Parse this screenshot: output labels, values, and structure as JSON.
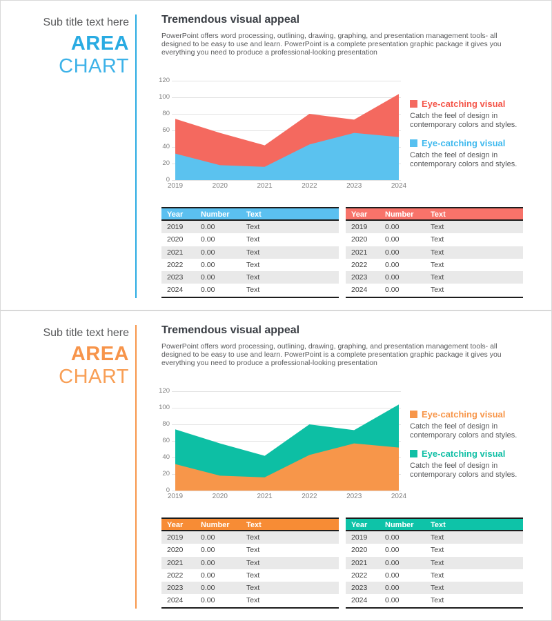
{
  "slides": [
    {
      "sidebar": {
        "subtitle": "Sub title text here",
        "word1": "AREA",
        "word2": "CHART"
      },
      "accent": {
        "word1": "#29ABE2",
        "word2": "#3DB2E8",
        "divider": "#29ABE2"
      },
      "header": {
        "title": "Tremendous visual appeal",
        "body": "PowerPoint offers word processing, outlining, drawing, graphing, and presentation management tools- all designed to be easy to use and learn. PowerPoint is a complete presentation graphic package it gives you everything you need to produce a professional-looking presentation"
      },
      "legends": [
        {
          "title": "Eye-catching visual",
          "title_color": "#F4564A",
          "swatch": "#F4695F",
          "desc": "Catch the feel of design in contemporary colors and styles."
        },
        {
          "title": "Eye-catching visual",
          "title_color": "#3FB9EE",
          "swatch": "#56C0F0",
          "desc": "Catch the feel of design in contemporary colors and styles."
        }
      ],
      "tables": [
        {
          "header_bg": "#5BC0F0",
          "columns": [
            "Year",
            "Number",
            "Text"
          ],
          "rows": [
            [
              "2019",
              "0.00",
              "Text"
            ],
            [
              "2020",
              "0.00",
              "Text"
            ],
            [
              "2021",
              "0.00",
              "Text"
            ],
            [
              "2022",
              "0.00",
              "Text"
            ],
            [
              "2023",
              "0.00",
              "Text"
            ],
            [
              "2024",
              "0.00",
              "Text"
            ]
          ]
        },
        {
          "header_bg": "#F8736A",
          "columns": [
            "Year",
            "Number",
            "Text"
          ],
          "rows": [
            [
              "2019",
              "0.00",
              "Text"
            ],
            [
              "2020",
              "0.00",
              "Text"
            ],
            [
              "2021",
              "0.00",
              "Text"
            ],
            [
              "2022",
              "0.00",
              "Text"
            ],
            [
              "2023",
              "0.00",
              "Text"
            ],
            [
              "2024",
              "0.00",
              "Text"
            ]
          ]
        }
      ]
    },
    {
      "sidebar": {
        "subtitle": "Sub title text here",
        "word1": "AREA",
        "word2": "CHART"
      },
      "accent": {
        "word1": "#F7944A",
        "word2": "#F89F56",
        "divider": "#F7964A"
      },
      "header": {
        "title": "Tremendous visual appeal",
        "body": "PowerPoint offers word processing, outlining, drawing, graphing, and presentation management tools- all designed to be easy to use and learn. PowerPoint is a complete presentation graphic package it gives you everything you need to produce a professional-looking presentation"
      },
      "legends": [
        {
          "title": "Eye-catching visual",
          "title_color": "#F7964A",
          "swatch": "#F7964A",
          "desc": "Catch the feel of design in contemporary colors and styles."
        },
        {
          "title": "Eye-catching visual",
          "title_color": "#10BFA5",
          "swatch": "#10BFA5",
          "desc": "Catch the feel of design in contemporary colors and styles."
        }
      ],
      "tables": [
        {
          "header_bg": "#F78C35",
          "columns": [
            "Year",
            "Number",
            "Text"
          ],
          "rows": [
            [
              "2019",
              "0.00",
              "Text"
            ],
            [
              "2020",
              "0.00",
              "Text"
            ],
            [
              "2021",
              "0.00",
              "Text"
            ],
            [
              "2022",
              "0.00",
              "Text"
            ],
            [
              "2023",
              "0.00",
              "Text"
            ],
            [
              "2024",
              "0.00",
              "Text"
            ]
          ]
        },
        {
          "header_bg": "#0EC3A8",
          "columns": [
            "Year",
            "Number",
            "Text"
          ],
          "rows": [
            [
              "2019",
              "0.00",
              "Text"
            ],
            [
              "2020",
              "0.00",
              "Text"
            ],
            [
              "2021",
              "0.00",
              "Text"
            ],
            [
              "2022",
              "0.00",
              "Text"
            ],
            [
              "2023",
              "0.00",
              "Text"
            ],
            [
              "2024",
              "0.00",
              "Text"
            ]
          ]
        }
      ]
    }
  ],
  "chart_data": [
    {
      "type": "area",
      "title": "",
      "x": [
        2019,
        2020,
        2021,
        2022,
        2023,
        2024
      ],
      "series": [
        {
          "name": "Eye-catching visual",
          "color": "#F4695F",
          "values": [
            74,
            57,
            42,
            80,
            73,
            104
          ]
        },
        {
          "name": "Eye-catching visual",
          "color": "#5BC2EF",
          "values": [
            32,
            18,
            16,
            43,
            57,
            52
          ]
        }
      ],
      "ylim": [
        0,
        120
      ],
      "yticks": [
        0,
        20,
        40,
        60,
        80,
        100,
        120
      ],
      "xlabel": "",
      "ylabel": "",
      "grid": true,
      "legend_position": "right",
      "overlap": true
    },
    {
      "type": "area",
      "title": "",
      "x": [
        2019,
        2020,
        2021,
        2022,
        2023,
        2024
      ],
      "series": [
        {
          "name": "Eye-catching visual",
          "color": "#0DBFA4",
          "values": [
            74,
            57,
            42,
            80,
            73,
            104
          ]
        },
        {
          "name": "Eye-catching visual",
          "color": "#F7964A",
          "values": [
            32,
            18,
            16,
            43,
            57,
            52
          ]
        }
      ],
      "ylim": [
        0,
        120
      ],
      "yticks": [
        0,
        20,
        40,
        60,
        80,
        100,
        120
      ],
      "xlabel": "",
      "ylabel": "",
      "grid": true,
      "legend_position": "right",
      "overlap": true
    }
  ]
}
